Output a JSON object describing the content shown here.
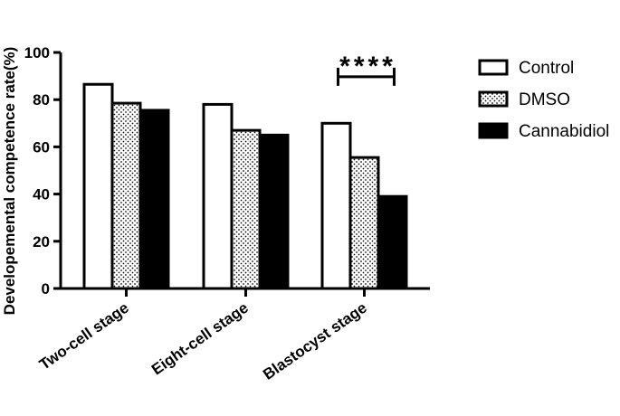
{
  "chart_data": {
    "type": "bar",
    "title": "",
    "xlabel": "",
    "ylabel": "Developemental competence rate(%)",
    "ylim": [
      0,
      100
    ],
    "yticks": [
      0,
      20,
      40,
      60,
      80,
      100
    ],
    "categories": [
      "Two-cell stage",
      "Eight-cell stage",
      "Blastocyst stage"
    ],
    "series": [
      {
        "name": "Control",
        "values": [
          86.5,
          78,
          70
        ],
        "fill": "white"
      },
      {
        "name": "DMSO",
        "values": [
          78.5,
          67,
          55.5
        ],
        "fill": "dots"
      },
      {
        "name": "Cannabidiol",
        "values": [
          75.5,
          65,
          39
        ],
        "fill": "black"
      }
    ],
    "legend_position": "right",
    "annotation": {
      "text": "****",
      "category": "Blastocyst stage",
      "y": 92
    }
  }
}
